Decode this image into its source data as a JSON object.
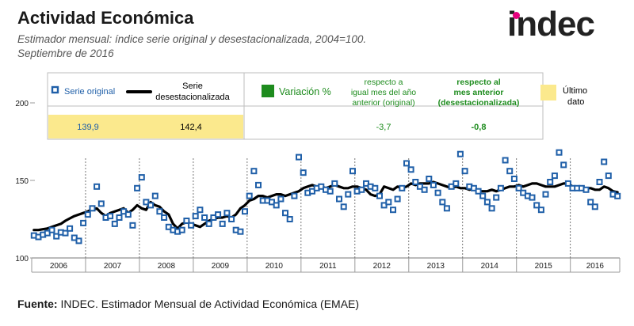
{
  "header": {
    "title": "Actividad Económica",
    "subtitle": "Estimador mensual: índice serie original y desestacionalizada, 2004=100.",
    "date": "Septiembre de 2016",
    "logo_text": "indec"
  },
  "legend": {
    "original_label": "Serie original",
    "sa_label_line1": "Serie",
    "sa_label_line2": "desestacionalizada",
    "variation_label": "Variación %",
    "yoy_line1": "respecto a",
    "yoy_line2": "igual mes del año",
    "yoy_line3": "anterior (original)",
    "mom_line1": "respecto al",
    "mom_line2": "mes anterior",
    "mom_line3": "(desestacionalizada)",
    "last_line1": "Último",
    "last_line2": "dato",
    "original_value": "139,9",
    "sa_value": "142,4",
    "yoy_value": "-3,7",
    "mom_value": "-0,8"
  },
  "colors": {
    "original": "#1f5fa8",
    "sa_line": "#000000",
    "highlight": "#fbe98d",
    "variation_green": "#1e8c1e"
  },
  "chart_data": {
    "type": "line",
    "x_start": "2006-01",
    "x_end": "2016-09",
    "ylim": [
      100,
      200
    ],
    "yticks": [
      "100",
      "150",
      "200"
    ],
    "years": [
      "2006",
      "2007",
      "2008",
      "2009",
      "2010",
      "2011",
      "2012",
      "2013",
      "2014",
      "2015",
      "2016"
    ],
    "series": [
      {
        "name": "Serie original",
        "values": [
          114.5,
          113.5,
          115.0,
          116.0,
          118.0,
          114.0,
          116.5,
          116.0,
          119.0,
          113.0,
          111.0,
          122.5,
          128.0,
          132.0,
          146.0,
          135.0,
          126.0,
          127.0,
          122.0,
          126.0,
          130.0,
          128.0,
          121.0,
          145.0,
          152.0,
          136.0,
          134.0,
          140.0,
          130.0,
          126.0,
          120.0,
          118.0,
          117.0,
          118.0,
          124.0,
          121.0,
          127.0,
          131.0,
          126.0,
          122.0,
          126.0,
          128.0,
          122.0,
          129.0,
          125.0,
          118.0,
          117.0,
          130.0,
          140.0,
          156.0,
          147.0,
          137.0,
          137.0,
          136.0,
          134.0,
          138.0,
          129.0,
          125.0,
          140.0,
          165.0,
          155.0,
          142.0,
          143.0,
          145.0,
          146.0,
          144.0,
          143.0,
          148.0,
          138.0,
          133.0,
          141.0,
          156.0,
          143.0,
          144.0,
          148.0,
          146.0,
          145.0,
          140.0,
          134.0,
          136.0,
          131.0,
          138.0,
          145.0,
          161.0,
          157.0,
          149.0,
          146.0,
          144.0,
          151.0,
          147.0,
          142.0,
          136.0,
          132.0,
          146.0,
          148.0,
          167.0,
          156.0,
          146.0,
          145.0,
          143.0,
          140.0,
          136.0,
          132.0,
          139.0,
          145.0,
          163.0,
          156.0,
          151.0,
          145.0,
          142.0,
          140.0,
          139.0,
          134.0,
          131.0,
          141.0,
          149.0,
          153.0,
          168.0,
          160.0,
          148.0,
          145.0,
          145.0,
          145.0,
          144.0,
          136.0,
          133.0,
          149.0,
          162.0,
          153.0,
          141.0,
          139.9
        ]
      },
      {
        "name": "Serie desestacionalizada",
        "values": [
          118.0,
          118.0,
          118.5,
          119.0,
          120.0,
          121.0,
          122.0,
          124.0,
          125.5,
          127.0,
          128.0,
          129.0,
          130.0,
          131.5,
          132.0,
          129.0,
          127.0,
          129.0,
          130.0,
          131.0,
          132.0,
          129.0,
          131.0,
          134.0,
          132.0,
          131.0,
          136.0,
          134.0,
          133.0,
          130.0,
          128.0,
          122.0,
          119.0,
          122.0,
          123.0,
          122.0,
          121.0,
          120.0,
          122.0,
          124.0,
          125.0,
          126.0,
          126.0,
          127.0,
          126.0,
          128.0,
          132.0,
          134.0,
          137.0,
          138.0,
          140.0,
          140.0,
          139.0,
          140.0,
          141.0,
          141.0,
          140.0,
          141.0,
          142.0,
          143.0,
          145.0,
          146.0,
          147.0,
          146.0,
          146.0,
          145.0,
          146.0,
          147.0,
          146.0,
          145.0,
          145.0,
          146.0,
          146.0,
          145.0,
          144.0,
          141.0,
          140.0,
          141.0,
          146.0,
          145.0,
          144.0,
          146.0,
          145.0,
          146.0,
          148.0,
          147.0,
          148.0,
          148.0,
          148.0,
          149.0,
          148.0,
          147.0,
          146.0,
          145.0,
          146.0,
          145.0,
          145.0,
          144.0,
          145.0,
          143.0,
          143.0,
          143.0,
          144.0,
          143.0,
          144.0,
          145.0,
          146.0,
          146.0,
          147.0,
          146.0,
          147.0,
          148.0,
          148.0,
          147.0,
          146.0,
          146.0,
          146.0,
          147.0,
          148.0,
          148.0,
          146.0,
          145.0,
          144.0,
          145.0,
          145.0,
          144.0,
          144.0,
          146.0,
          145.0,
          143.0,
          142.4
        ]
      }
    ]
  },
  "footer": {
    "label": "Fuente:",
    "text": " INDEC. Estimador Mensual de Actividad Económica (EMAE)"
  }
}
